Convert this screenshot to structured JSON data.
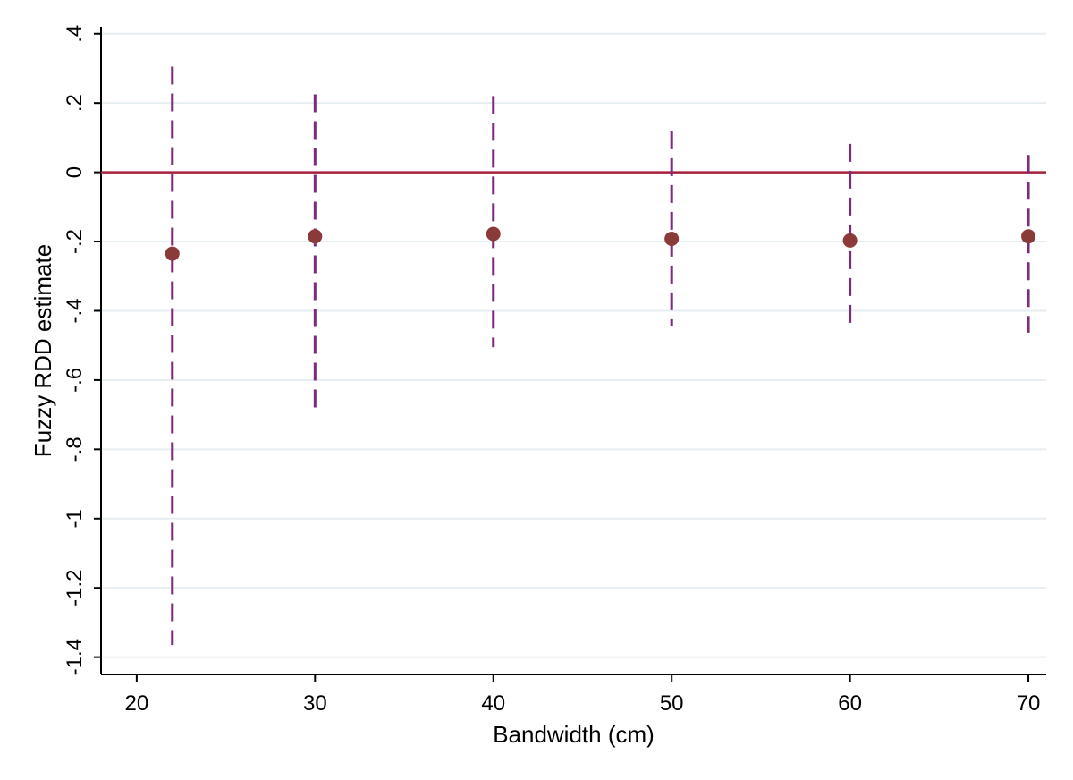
{
  "chart_data": {
    "type": "scatter",
    "title": "",
    "xlabel": "Bandwidth (cm)",
    "ylabel": "Fuzzy RDD estimate",
    "xlim": [
      18,
      71
    ],
    "ylim": [
      -1.45,
      0.42
    ],
    "x_ticks": [
      20,
      30,
      40,
      50,
      60,
      70
    ],
    "x_tick_labels": [
      "20",
      "30",
      "40",
      "50",
      "60",
      "70"
    ],
    "y_ticks": [
      0.4,
      0.2,
      0,
      -0.2,
      -0.4,
      -0.6,
      -0.8,
      -1,
      -1.2,
      -1.4
    ],
    "y_tick_labels": [
      ".4",
      ".2",
      "0",
      "-.2",
      "-.4",
      "-.6",
      "-.8",
      "-1",
      "-1.2",
      "-1.4"
    ],
    "grid": true,
    "reference_line": {
      "y": 0,
      "color": "#a3203c"
    },
    "point_color": "#8b3a3a",
    "ci_color": "#7b2a7e",
    "points": [
      {
        "x": 22,
        "y": -0.235,
        "ci_low": -1.365,
        "ci_high": 0.305
      },
      {
        "x": 30,
        "y": -0.185,
        "ci_low": -0.69,
        "ci_high": 0.225
      },
      {
        "x": 40,
        "y": -0.178,
        "ci_low": -0.505,
        "ci_high": 0.22
      },
      {
        "x": 50,
        "y": -0.192,
        "ci_low": -0.445,
        "ci_high": 0.118
      },
      {
        "x": 60,
        "y": -0.197,
        "ci_low": -0.452,
        "ci_high": 0.082
      },
      {
        "x": 70,
        "y": -0.185,
        "ci_low": -0.463,
        "ci_high": 0.05
      }
    ]
  }
}
